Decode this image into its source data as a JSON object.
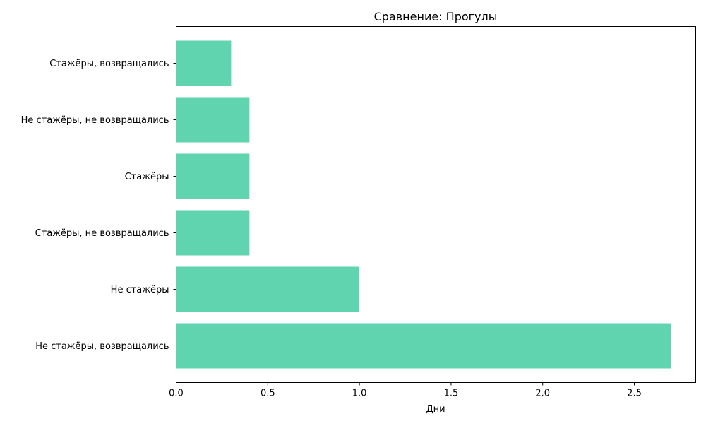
{
  "chart_data": {
    "type": "bar",
    "orientation": "horizontal",
    "title": "Сравнение: Прогулы",
    "xlabel": "Дни",
    "ylabel": "",
    "categories": [
      "Не стажёры, возвращались",
      "Не стажёры",
      "Стажёры, не возвращались",
      "Стажёры",
      "Не стажёры, не возвращались",
      "Стажёры, возвращались"
    ],
    "values": [
      2.7,
      1.0,
      0.4,
      0.4,
      0.4,
      0.3
    ],
    "xlim": [
      0,
      2.835
    ],
    "xticks": [
      0.0,
      0.5,
      1.0,
      1.5,
      2.0,
      2.5
    ],
    "xtick_labels": [
      "0.0",
      "0.5",
      "1.0",
      "1.5",
      "2.0",
      "2.5"
    ],
    "grid": false,
    "bar_color": "#5fd4ae"
  }
}
